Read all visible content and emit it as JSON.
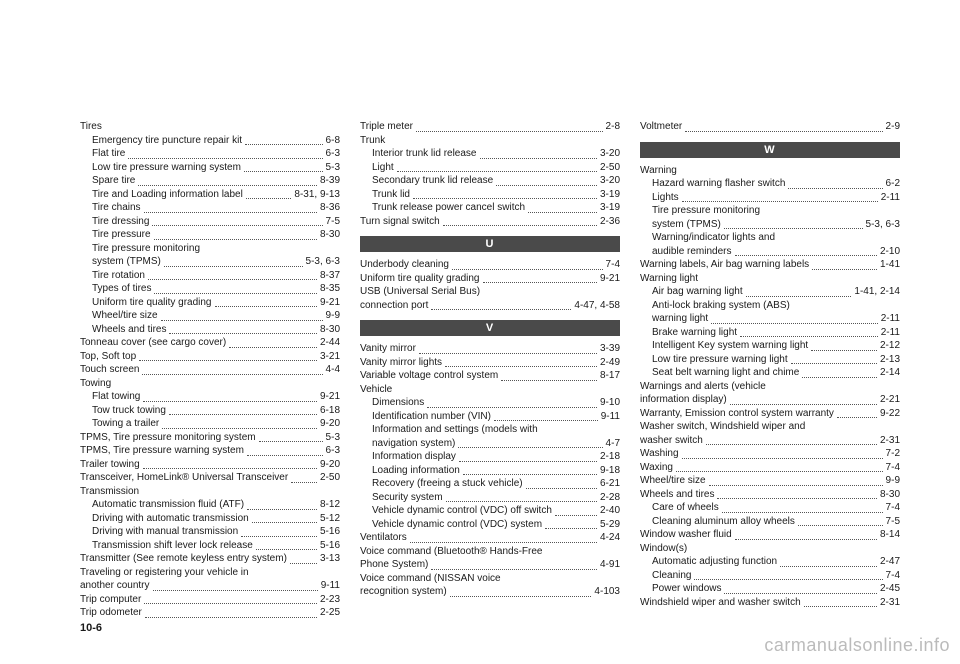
{
  "pagenum": "10-6",
  "watermark": "carmanualsonline.info",
  "columns": [
    {
      "items": [
        {
          "type": "group",
          "label": "Tires"
        },
        {
          "type": "entry",
          "indent": true,
          "label": "Emergency tire puncture repair kit",
          "page": "6-8"
        },
        {
          "type": "entry",
          "indent": true,
          "label": "Flat tire",
          "page": "6-3"
        },
        {
          "type": "entry",
          "indent": true,
          "label": "Low tire pressure warning system",
          "page": "5-3"
        },
        {
          "type": "entry",
          "indent": true,
          "label": "Spare tire",
          "page": "8-39"
        },
        {
          "type": "entry",
          "indent": true,
          "label": "Tire and Loading information label",
          "page": "8-31, 9-13"
        },
        {
          "type": "entry",
          "indent": true,
          "label": "Tire chains",
          "page": "8-36"
        },
        {
          "type": "entry",
          "indent": true,
          "label": "Tire dressing",
          "page": "7-5"
        },
        {
          "type": "entry",
          "indent": true,
          "label": "Tire pressure",
          "page": "8-30"
        },
        {
          "type": "group",
          "indent": true,
          "label": "Tire pressure monitoring"
        },
        {
          "type": "entry",
          "indent": true,
          "label": "system (TPMS)",
          "page": "5-3, 6-3"
        },
        {
          "type": "entry",
          "indent": true,
          "label": "Tire rotation",
          "page": "8-37"
        },
        {
          "type": "entry",
          "indent": true,
          "label": "Types of tires",
          "page": "8-35"
        },
        {
          "type": "entry",
          "indent": true,
          "label": "Uniform tire quality grading",
          "page": "9-21"
        },
        {
          "type": "entry",
          "indent": true,
          "label": "Wheel/tire size",
          "page": "9-9"
        },
        {
          "type": "entry",
          "indent": true,
          "label": "Wheels and tires",
          "page": "8-30"
        },
        {
          "type": "entry",
          "label": "Tonneau cover (see cargo cover)",
          "page": "2-44"
        },
        {
          "type": "entry",
          "label": "Top, Soft top",
          "page": "3-21"
        },
        {
          "type": "entry",
          "label": "Touch screen",
          "page": "4-4"
        },
        {
          "type": "group",
          "label": "Towing"
        },
        {
          "type": "entry",
          "indent": true,
          "label": "Flat towing",
          "page": "9-21"
        },
        {
          "type": "entry",
          "indent": true,
          "label": "Tow truck towing",
          "page": "6-18"
        },
        {
          "type": "entry",
          "indent": true,
          "label": "Towing a trailer",
          "page": "9-20"
        },
        {
          "type": "entry",
          "label": "TPMS, Tire pressure monitoring system",
          "page": "5-3"
        },
        {
          "type": "entry",
          "label": "TPMS, Tire pressure warning system",
          "page": "6-3"
        },
        {
          "type": "entry",
          "label": "Trailer towing",
          "page": "9-20"
        },
        {
          "type": "entry",
          "label": "Transceiver, HomeLink® Universal Transceiver",
          "page": "2-50"
        },
        {
          "type": "group",
          "label": "Transmission"
        },
        {
          "type": "entry",
          "indent": true,
          "label": "Automatic transmission fluid (ATF)",
          "page": "8-12"
        },
        {
          "type": "entry",
          "indent": true,
          "label": "Driving with automatic transmission",
          "page": "5-12"
        },
        {
          "type": "entry",
          "indent": true,
          "label": "Driving with manual transmission",
          "page": "5-16"
        },
        {
          "type": "entry",
          "indent": true,
          "label": "Transmission shift lever lock release",
          "page": "5-16"
        },
        {
          "type": "entry",
          "label": "Transmitter (See remote keyless entry system)",
          "page": "3-13"
        },
        {
          "type": "group",
          "label": "Traveling or registering your vehicle in"
        },
        {
          "type": "entry",
          "label": "another country",
          "page": "9-11"
        },
        {
          "type": "entry",
          "label": "Trip computer",
          "page": "2-23"
        },
        {
          "type": "entry",
          "label": "Trip odometer",
          "page": "2-25"
        }
      ]
    },
    {
      "items": [
        {
          "type": "entry",
          "label": "Triple meter",
          "page": "2-8"
        },
        {
          "type": "group",
          "label": "Trunk"
        },
        {
          "type": "entry",
          "indent": true,
          "label": "Interior trunk lid release",
          "page": "3-20"
        },
        {
          "type": "entry",
          "indent": true,
          "label": "Light",
          "page": "2-50"
        },
        {
          "type": "entry",
          "indent": true,
          "label": "Secondary trunk lid release",
          "page": "3-20"
        },
        {
          "type": "entry",
          "indent": true,
          "label": "Trunk lid",
          "page": "3-19"
        },
        {
          "type": "entry",
          "indent": true,
          "label": "Trunk release power cancel switch",
          "page": "3-19"
        },
        {
          "type": "entry",
          "label": "Turn signal switch",
          "page": "2-36"
        },
        {
          "type": "header",
          "label": "U"
        },
        {
          "type": "entry",
          "label": "Underbody cleaning",
          "page": "7-4"
        },
        {
          "type": "entry",
          "label": "Uniform tire quality grading",
          "page": "9-21"
        },
        {
          "type": "group",
          "label": "USB (Universal Serial Bus)"
        },
        {
          "type": "entry",
          "label": "connection port",
          "page": "4-47, 4-58"
        },
        {
          "type": "header",
          "label": "V"
        },
        {
          "type": "entry",
          "label": "Vanity mirror",
          "page": "3-39"
        },
        {
          "type": "entry",
          "label": "Vanity mirror lights",
          "page": "2-49"
        },
        {
          "type": "entry",
          "label": "Variable voltage control system",
          "page": "8-17"
        },
        {
          "type": "group",
          "label": "Vehicle"
        },
        {
          "type": "entry",
          "indent": true,
          "label": "Dimensions",
          "page": "9-10"
        },
        {
          "type": "entry",
          "indent": true,
          "label": "Identification number (VIN)",
          "page": "9-11"
        },
        {
          "type": "group",
          "indent": true,
          "label": "Information and settings (models with"
        },
        {
          "type": "entry",
          "indent": true,
          "label": "navigation system)",
          "page": "4-7"
        },
        {
          "type": "entry",
          "indent": true,
          "label": "Information display",
          "page": "2-18"
        },
        {
          "type": "entry",
          "indent": true,
          "label": "Loading information",
          "page": "9-18"
        },
        {
          "type": "entry",
          "indent": true,
          "label": "Recovery (freeing a stuck vehicle)",
          "page": "6-21"
        },
        {
          "type": "entry",
          "indent": true,
          "label": "Security system",
          "page": "2-28"
        },
        {
          "type": "entry",
          "indent": true,
          "label": "Vehicle dynamic control (VDC) off switch",
          "page": "2-40"
        },
        {
          "type": "entry",
          "indent": true,
          "label": "Vehicle dynamic control (VDC) system",
          "page": "5-29"
        },
        {
          "type": "entry",
          "label": "Ventilators",
          "page": "4-24"
        },
        {
          "type": "group",
          "label": "Voice command (Bluetooth® Hands-Free"
        },
        {
          "type": "entry",
          "label": "Phone System)",
          "page": "4-91"
        },
        {
          "type": "group",
          "label": "Voice command (NISSAN voice"
        },
        {
          "type": "entry",
          "label": "recognition system)",
          "page": "4-103"
        }
      ]
    },
    {
      "items": [
        {
          "type": "entry",
          "label": "Voltmeter",
          "page": "2-9"
        },
        {
          "type": "header",
          "label": "W"
        },
        {
          "type": "group",
          "label": "Warning"
        },
        {
          "type": "entry",
          "indent": true,
          "label": "Hazard warning flasher switch",
          "page": "6-2"
        },
        {
          "type": "entry",
          "indent": true,
          "label": "Lights",
          "page": "2-11"
        },
        {
          "type": "group",
          "indent": true,
          "label": "Tire pressure monitoring"
        },
        {
          "type": "entry",
          "indent": true,
          "label": "system (TPMS)",
          "page": "5-3, 6-3"
        },
        {
          "type": "group",
          "indent": true,
          "label": "Warning/indicator lights and"
        },
        {
          "type": "entry",
          "indent": true,
          "label": "audible reminders",
          "page": "2-10"
        },
        {
          "type": "entry",
          "label": "Warning labels, Air bag warning labels",
          "page": "1-41"
        },
        {
          "type": "group",
          "label": "Warning light"
        },
        {
          "type": "entry",
          "indent": true,
          "label": "Air bag warning light",
          "page": "1-41, 2-14"
        },
        {
          "type": "group",
          "indent": true,
          "label": "Anti-lock braking system (ABS)"
        },
        {
          "type": "entry",
          "indent": true,
          "label": "warning light",
          "page": "2-11"
        },
        {
          "type": "entry",
          "indent": true,
          "label": "Brake warning light",
          "page": "2-11"
        },
        {
          "type": "entry",
          "indent": true,
          "label": "Intelligent Key system warning light",
          "page": "2-12"
        },
        {
          "type": "entry",
          "indent": true,
          "label": "Low tire pressure warning light",
          "page": "2-13"
        },
        {
          "type": "entry",
          "indent": true,
          "label": "Seat belt warning light and chime",
          "page": "2-14"
        },
        {
          "type": "group",
          "label": "Warnings and alerts (vehicle"
        },
        {
          "type": "entry",
          "label": "information display)",
          "page": "2-21"
        },
        {
          "type": "entry",
          "label": "Warranty, Emission control system warranty",
          "page": "9-22"
        },
        {
          "type": "group",
          "label": "Washer switch, Windshield wiper and"
        },
        {
          "type": "entry",
          "label": "washer switch",
          "page": "2-31"
        },
        {
          "type": "entry",
          "label": "Washing",
          "page": "7-2"
        },
        {
          "type": "entry",
          "label": "Waxing",
          "page": "7-4"
        },
        {
          "type": "entry",
          "label": "Wheel/tire size",
          "page": "9-9"
        },
        {
          "type": "entry",
          "label": "Wheels and tires",
          "page": "8-30"
        },
        {
          "type": "entry",
          "indent": true,
          "label": "Care of wheels",
          "page": "7-4"
        },
        {
          "type": "entry",
          "indent": true,
          "label": "Cleaning aluminum alloy wheels",
          "page": "7-5"
        },
        {
          "type": "entry",
          "label": "Window washer fluid",
          "page": "8-14"
        },
        {
          "type": "group",
          "label": "Window(s)"
        },
        {
          "type": "entry",
          "indent": true,
          "label": "Automatic adjusting function",
          "page": "2-47"
        },
        {
          "type": "entry",
          "indent": true,
          "label": "Cleaning",
          "page": "7-4"
        },
        {
          "type": "entry",
          "indent": true,
          "label": "Power windows",
          "page": "2-45"
        },
        {
          "type": "entry",
          "label": "Windshield wiper and washer switch",
          "page": "2-31"
        }
      ]
    }
  ]
}
